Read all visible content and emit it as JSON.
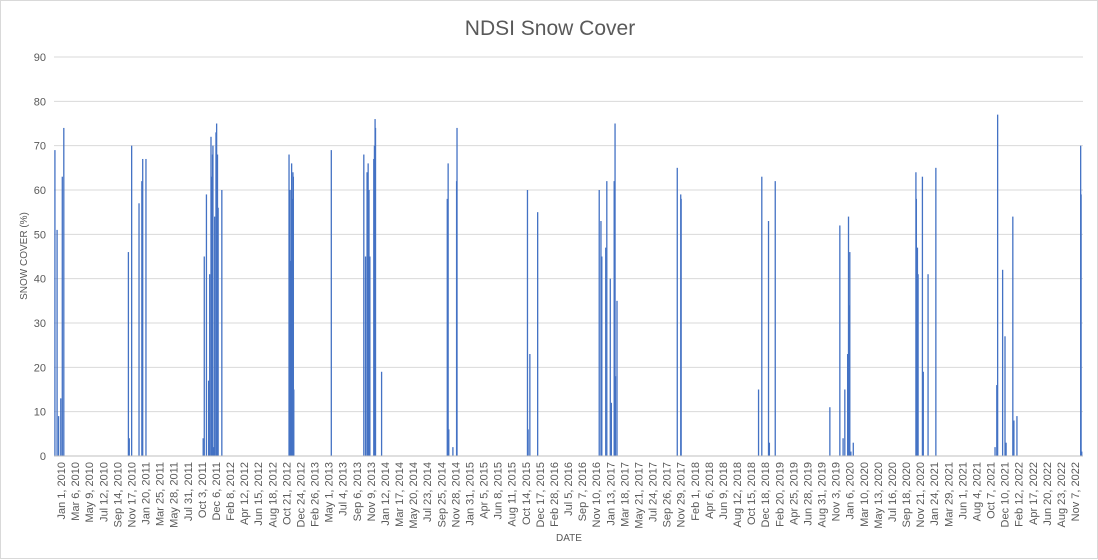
{
  "chart_data": {
    "type": "bar",
    "title": "NDSI Snow Cover",
    "xlabel": "DATE",
    "ylabel": "SNOW COVER (%)",
    "ylim": [
      0,
      90
    ],
    "y_ticks": [
      0,
      10,
      20,
      30,
      40,
      50,
      60,
      70,
      80,
      90
    ],
    "grid": true,
    "legend": "none",
    "colors": {
      "bars": "#4472c4",
      "grid": "#d9d9d9",
      "text": "#595959"
    },
    "x_range": [
      "2010-01-01",
      "2022-12-31"
    ],
    "x_tick_labels": [
      "Jan 1, 2010",
      "Mar 6, 2010",
      "May 9, 2010",
      "Jul 12, 2010",
      "Sep 14, 2010",
      "Nov 17, 2010",
      "Jan 20, 2011",
      "Mar 25, 2011",
      "May 28, 2011",
      "Jul 31, 2011",
      "Oct 3, 2011",
      "Dec 6, 2011",
      "Feb 8, 2012",
      "Apr 12, 2012",
      "Jun 15, 2012",
      "Aug 18, 2012",
      "Oct 21, 2012",
      "Dec 24, 2012",
      "Feb 26, 2013",
      "May 1, 2013",
      "Jul 4, 2013",
      "Sep 6, 2013",
      "Nov 9, 2013",
      "Jan 12, 2014",
      "Mar 17, 2014",
      "May 20, 2014",
      "Jul 23, 2014",
      "Sep 25, 2014",
      "Nov 28, 2014",
      "Jan 31, 2015",
      "Apr 5, 2015",
      "Jun 8, 2015",
      "Aug 11, 2015",
      "Oct 14, 2015",
      "Dec 17, 2015",
      "Feb 28, 2016",
      "Jul 5, 2016",
      "Sep 7, 2016",
      "Nov 10, 2016",
      "Jan 13, 2017",
      "Mar 18, 2017",
      "May 21, 2017",
      "Jul 24, 2017",
      "Sep 26, 2017",
      "Nov 29, 2017",
      "Feb 1, 2018",
      "Apr 6, 2018",
      "Jun 9, 2018",
      "Aug 12, 2018",
      "Oct 15, 2018",
      "Dec 18, 2018",
      "Feb 20, 2019",
      "Apr 25, 2019",
      "Jun 28, 2019",
      "Aug 31, 2019",
      "Nov 3, 2019",
      "Jan 6, 2020",
      "Mar 10, 2020",
      "May 13, 2020",
      "Jul 16, 2020",
      "Sep 18, 2020",
      "Nov 21, 2020",
      "Jan 24, 2021",
      "Mar 29, 2021",
      "Jun 1, 2021",
      "Aug 4, 2021",
      "Oct 7, 2021",
      "Dec 10, 2021",
      "Feb 12, 2022",
      "Apr 17, 2022",
      "Jun 20, 2022",
      "Aug 23, 2022",
      "Nov 7, 2022"
    ],
    "points": [
      {
        "date": "2010-01-05",
        "value": 69
      },
      {
        "date": "2010-01-15",
        "value": 51
      },
      {
        "date": "2010-01-22",
        "value": 9
      },
      {
        "date": "2010-02-01",
        "value": 13
      },
      {
        "date": "2010-02-08",
        "value": 63
      },
      {
        "date": "2010-02-15",
        "value": 74
      },
      {
        "date": "2010-12-10",
        "value": 46
      },
      {
        "date": "2010-12-14",
        "value": 4
      },
      {
        "date": "2010-12-25",
        "value": 70
      },
      {
        "date": "2011-01-28",
        "value": 57
      },
      {
        "date": "2011-02-10",
        "value": 62
      },
      {
        "date": "2011-02-14",
        "value": 67
      },
      {
        "date": "2011-03-01",
        "value": 67
      },
      {
        "date": "2011-11-20",
        "value": 4
      },
      {
        "date": "2011-11-25",
        "value": 45
      },
      {
        "date": "2011-12-05",
        "value": 59
      },
      {
        "date": "2011-12-15",
        "value": 17
      },
      {
        "date": "2011-12-20",
        "value": 41
      },
      {
        "date": "2011-12-26",
        "value": 72
      },
      {
        "date": "2011-12-28",
        "value": 63
      },
      {
        "date": "2012-01-02",
        "value": 68
      },
      {
        "date": "2012-01-04",
        "value": 70
      },
      {
        "date": "2012-01-08",
        "value": 2
      },
      {
        "date": "2012-01-12",
        "value": 54
      },
      {
        "date": "2012-01-18",
        "value": 73
      },
      {
        "date": "2012-01-21",
        "value": 75
      },
      {
        "date": "2012-01-25",
        "value": 68
      },
      {
        "date": "2012-01-28",
        "value": 56
      },
      {
        "date": "2012-02-14",
        "value": 60
      },
      {
        "date": "2012-12-20",
        "value": 68
      },
      {
        "date": "2012-12-25",
        "value": 60
      },
      {
        "date": "2012-12-28",
        "value": 44
      },
      {
        "date": "2013-01-01",
        "value": 66
      },
      {
        "date": "2013-01-03",
        "value": 47
      },
      {
        "date": "2013-01-05",
        "value": 58
      },
      {
        "date": "2013-01-07",
        "value": 64
      },
      {
        "date": "2013-01-09",
        "value": 63
      },
      {
        "date": "2013-01-11",
        "value": 15
      },
      {
        "date": "2013-07-03",
        "value": 69
      },
      {
        "date": "2013-11-30",
        "value": 68
      },
      {
        "date": "2013-12-08",
        "value": 45
      },
      {
        "date": "2013-12-15",
        "value": 64
      },
      {
        "date": "2013-12-20",
        "value": 66
      },
      {
        "date": "2013-12-24",
        "value": 60
      },
      {
        "date": "2013-12-28",
        "value": 45
      },
      {
        "date": "2014-01-15",
        "value": 67
      },
      {
        "date": "2014-01-18",
        "value": 70
      },
      {
        "date": "2014-01-21",
        "value": 76
      },
      {
        "date": "2014-01-23",
        "value": 74
      },
      {
        "date": "2014-02-20",
        "value": 19
      },
      {
        "date": "2014-12-20",
        "value": 58
      },
      {
        "date": "2014-12-24",
        "value": 66
      },
      {
        "date": "2014-12-27",
        "value": 6
      },
      {
        "date": "2015-01-15",
        "value": 2
      },
      {
        "date": "2015-02-01",
        "value": 62
      },
      {
        "date": "2015-02-03",
        "value": 74
      },
      {
        "date": "2015-12-25",
        "value": 60
      },
      {
        "date": "2015-12-28",
        "value": 6
      },
      {
        "date": "2016-01-05",
        "value": 23
      },
      {
        "date": "2016-02-10",
        "value": 55
      },
      {
        "date": "2016-11-20",
        "value": 60
      },
      {
        "date": "2016-11-28",
        "value": 53
      },
      {
        "date": "2016-12-02",
        "value": 45
      },
      {
        "date": "2016-12-20",
        "value": 47
      },
      {
        "date": "2016-12-25",
        "value": 62
      },
      {
        "date": "2017-01-10",
        "value": 40
      },
      {
        "date": "2017-01-15",
        "value": 12
      },
      {
        "date": "2017-01-28",
        "value": 62
      },
      {
        "date": "2017-02-01",
        "value": 75
      },
      {
        "date": "2017-02-03",
        "value": 18
      },
      {
        "date": "2017-02-10",
        "value": 35
      },
      {
        "date": "2017-11-15",
        "value": 65
      },
      {
        "date": "2017-12-01",
        "value": 59
      },
      {
        "date": "2017-12-03",
        "value": 58
      },
      {
        "date": "2018-11-25",
        "value": 15
      },
      {
        "date": "2018-12-10",
        "value": 63
      },
      {
        "date": "2019-01-10",
        "value": 53
      },
      {
        "date": "2019-01-14",
        "value": 3
      },
      {
        "date": "2019-02-10",
        "value": 62
      },
      {
        "date": "2019-10-20",
        "value": 11
      },
      {
        "date": "2019-12-05",
        "value": 52
      },
      {
        "date": "2019-12-20",
        "value": 4
      },
      {
        "date": "2019-12-28",
        "value": 15
      },
      {
        "date": "2020-01-10",
        "value": 23
      },
      {
        "date": "2020-01-14",
        "value": 54
      },
      {
        "date": "2020-01-17",
        "value": 34
      },
      {
        "date": "2020-01-20",
        "value": 46
      },
      {
        "date": "2020-01-25",
        "value": 1
      },
      {
        "date": "2020-02-05",
        "value": 3
      },
      {
        "date": "2020-11-20",
        "value": 64
      },
      {
        "date": "2020-11-22",
        "value": 58
      },
      {
        "date": "2020-11-24",
        "value": 41
      },
      {
        "date": "2020-11-27",
        "value": 47
      },
      {
        "date": "2020-11-30",
        "value": 41
      },
      {
        "date": "2020-12-20",
        "value": 63
      },
      {
        "date": "2020-12-24",
        "value": 19
      },
      {
        "date": "2021-01-15",
        "value": 41
      },
      {
        "date": "2021-02-20",
        "value": 65
      },
      {
        "date": "2021-11-20",
        "value": 2
      },
      {
        "date": "2021-11-28",
        "value": 16
      },
      {
        "date": "2021-12-02",
        "value": 77
      },
      {
        "date": "2021-12-25",
        "value": 42
      },
      {
        "date": "2022-01-05",
        "value": 27
      },
      {
        "date": "2022-01-10",
        "value": 3
      },
      {
        "date": "2022-02-10",
        "value": 54
      },
      {
        "date": "2022-02-15",
        "value": 8
      },
      {
        "date": "2022-03-01",
        "value": 9
      },
      {
        "date": "2022-12-20",
        "value": 70
      },
      {
        "date": "2022-12-22",
        "value": 59
      },
      {
        "date": "2022-12-25",
        "value": 1
      }
    ]
  }
}
